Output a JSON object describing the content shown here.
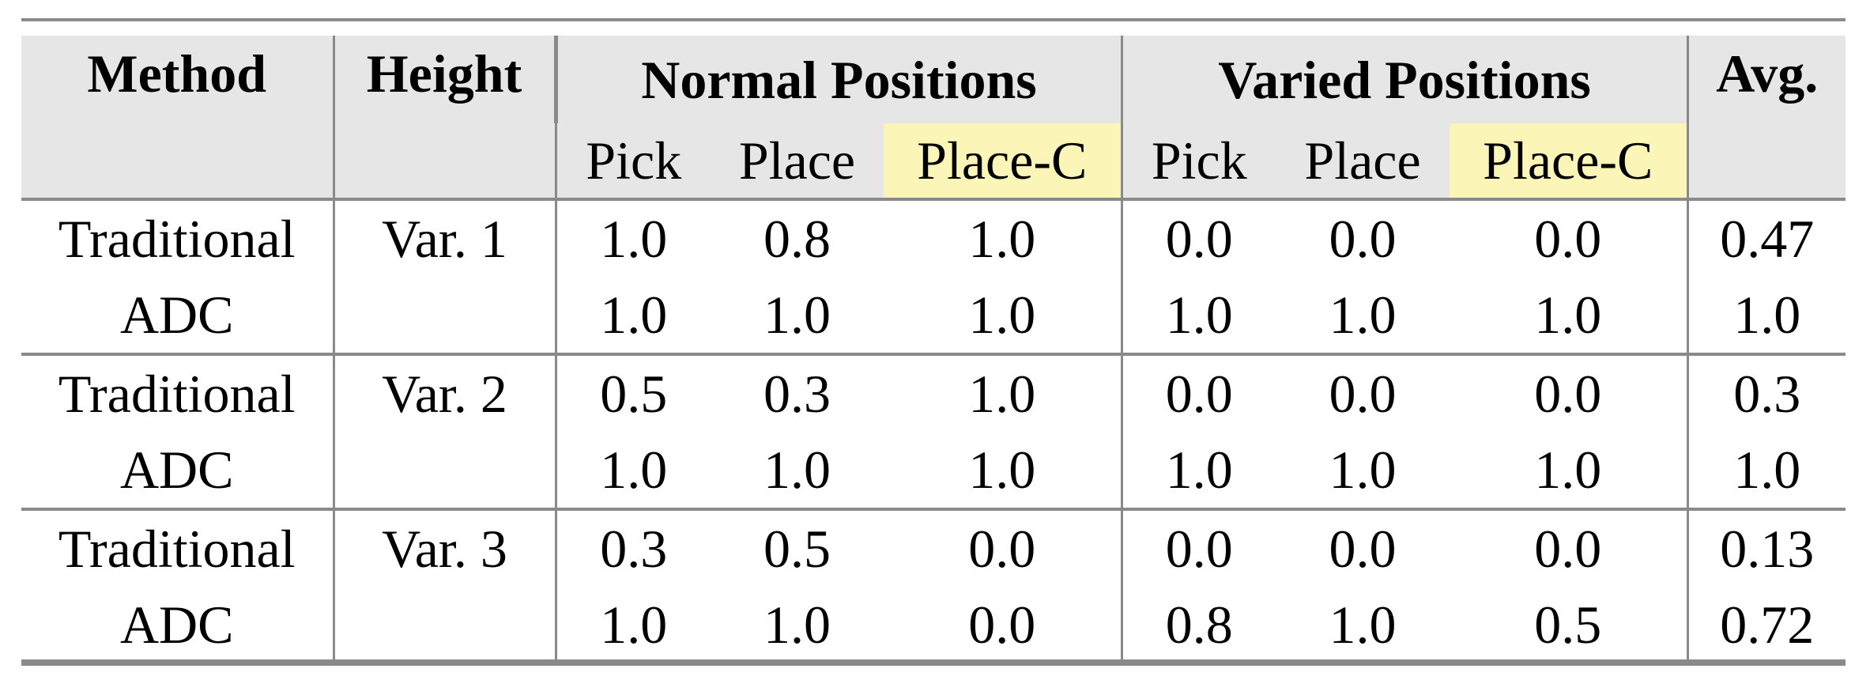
{
  "header": {
    "method": "Method",
    "height": "Height",
    "normal_positions": "Normal Positions",
    "varied_positions": "Varied Positions",
    "avg": "Avg.",
    "sub": [
      "Pick",
      "Place",
      "Place-C",
      "Pick",
      "Place",
      "Place-C"
    ]
  },
  "highlight_color": "#fbf6b8",
  "header_bg": "#e6e6e6",
  "rows": [
    {
      "method": "Traditional",
      "height": "Var. 1",
      "values": [
        "1.0",
        "0.8",
        "1.0",
        "0.0",
        "0.0",
        "0.0"
      ],
      "avg": "0.47"
    },
    {
      "method": "ADC",
      "height": "",
      "values": [
        "1.0",
        "1.0",
        "1.0",
        "1.0",
        "1.0",
        "1.0"
      ],
      "avg": "1.0"
    },
    {
      "method": "Traditional",
      "height": "Var. 2",
      "values": [
        "0.5",
        "0.3",
        "1.0",
        "0.0",
        "0.0",
        "0.0"
      ],
      "avg": "0.3"
    },
    {
      "method": "ADC",
      "height": "",
      "values": [
        "1.0",
        "1.0",
        "1.0",
        "1.0",
        "1.0",
        "1.0"
      ],
      "avg": "1.0"
    },
    {
      "method": "Traditional",
      "height": "Var. 3",
      "values": [
        "0.3",
        "0.5",
        "0.0",
        "0.0",
        "0.0",
        "0.0"
      ],
      "avg": "0.13"
    },
    {
      "method": "ADC",
      "height": "",
      "values": [
        "1.0",
        "1.0",
        "0.0",
        "0.8",
        "1.0",
        "0.5"
      ],
      "avg": "0.72"
    }
  ]
}
